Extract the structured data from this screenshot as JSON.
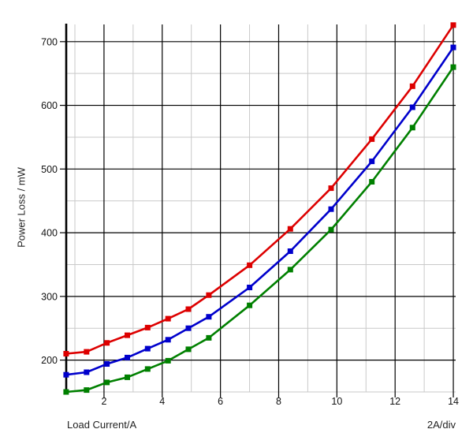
{
  "chart_data": {
    "type": "line",
    "title": "",
    "xlabel": "Load Current/A",
    "ylabel": "Power Loss / mW",
    "x_scale_note": "2A/div",
    "x": [
      0.7,
      1.4,
      2.1,
      2.8,
      3.5,
      4.2,
      4.9,
      5.6,
      7.0,
      8.4,
      9.8,
      11.2,
      12.6,
      14.0
    ],
    "series": [
      {
        "name": "red-curve",
        "color": "#dd0000",
        "values": [
          210,
          213,
          227,
          239,
          251,
          265,
          280,
          302,
          349,
          406,
          470,
          547,
          630,
          726
        ]
      },
      {
        "name": "blue-curve",
        "color": "#0000cc",
        "values": [
          177,
          181,
          194,
          204,
          218,
          232,
          250,
          268,
          314,
          371,
          437,
          512,
          597,
          691
        ]
      },
      {
        "name": "green-curve",
        "color": "#008000",
        "values": [
          150,
          153,
          165,
          173,
          186,
          199,
          217,
          235,
          286,
          342,
          405,
          480,
          565,
          660
        ]
      }
    ],
    "xticks": [
      2,
      4,
      6,
      8,
      10,
      12,
      14
    ],
    "yticks": [
      200,
      300,
      400,
      500,
      600,
      700
    ],
    "minor_x_gridlines": [
      1,
      3,
      5,
      7,
      9,
      11,
      13
    ],
    "minor_y_gridlines": [
      150,
      250,
      350,
      450,
      550,
      650
    ],
    "xlim": [
      0.675,
      14.08
    ],
    "ylim": [
      150,
      727
    ],
    "grid": true,
    "legend": "none",
    "marker": "square",
    "colors": {
      "major_grid": "#000000",
      "minor_grid": "#c9c9c9",
      "axis": "#000000",
      "tick_text": "#111111",
      "background": "#ffffff"
    }
  }
}
